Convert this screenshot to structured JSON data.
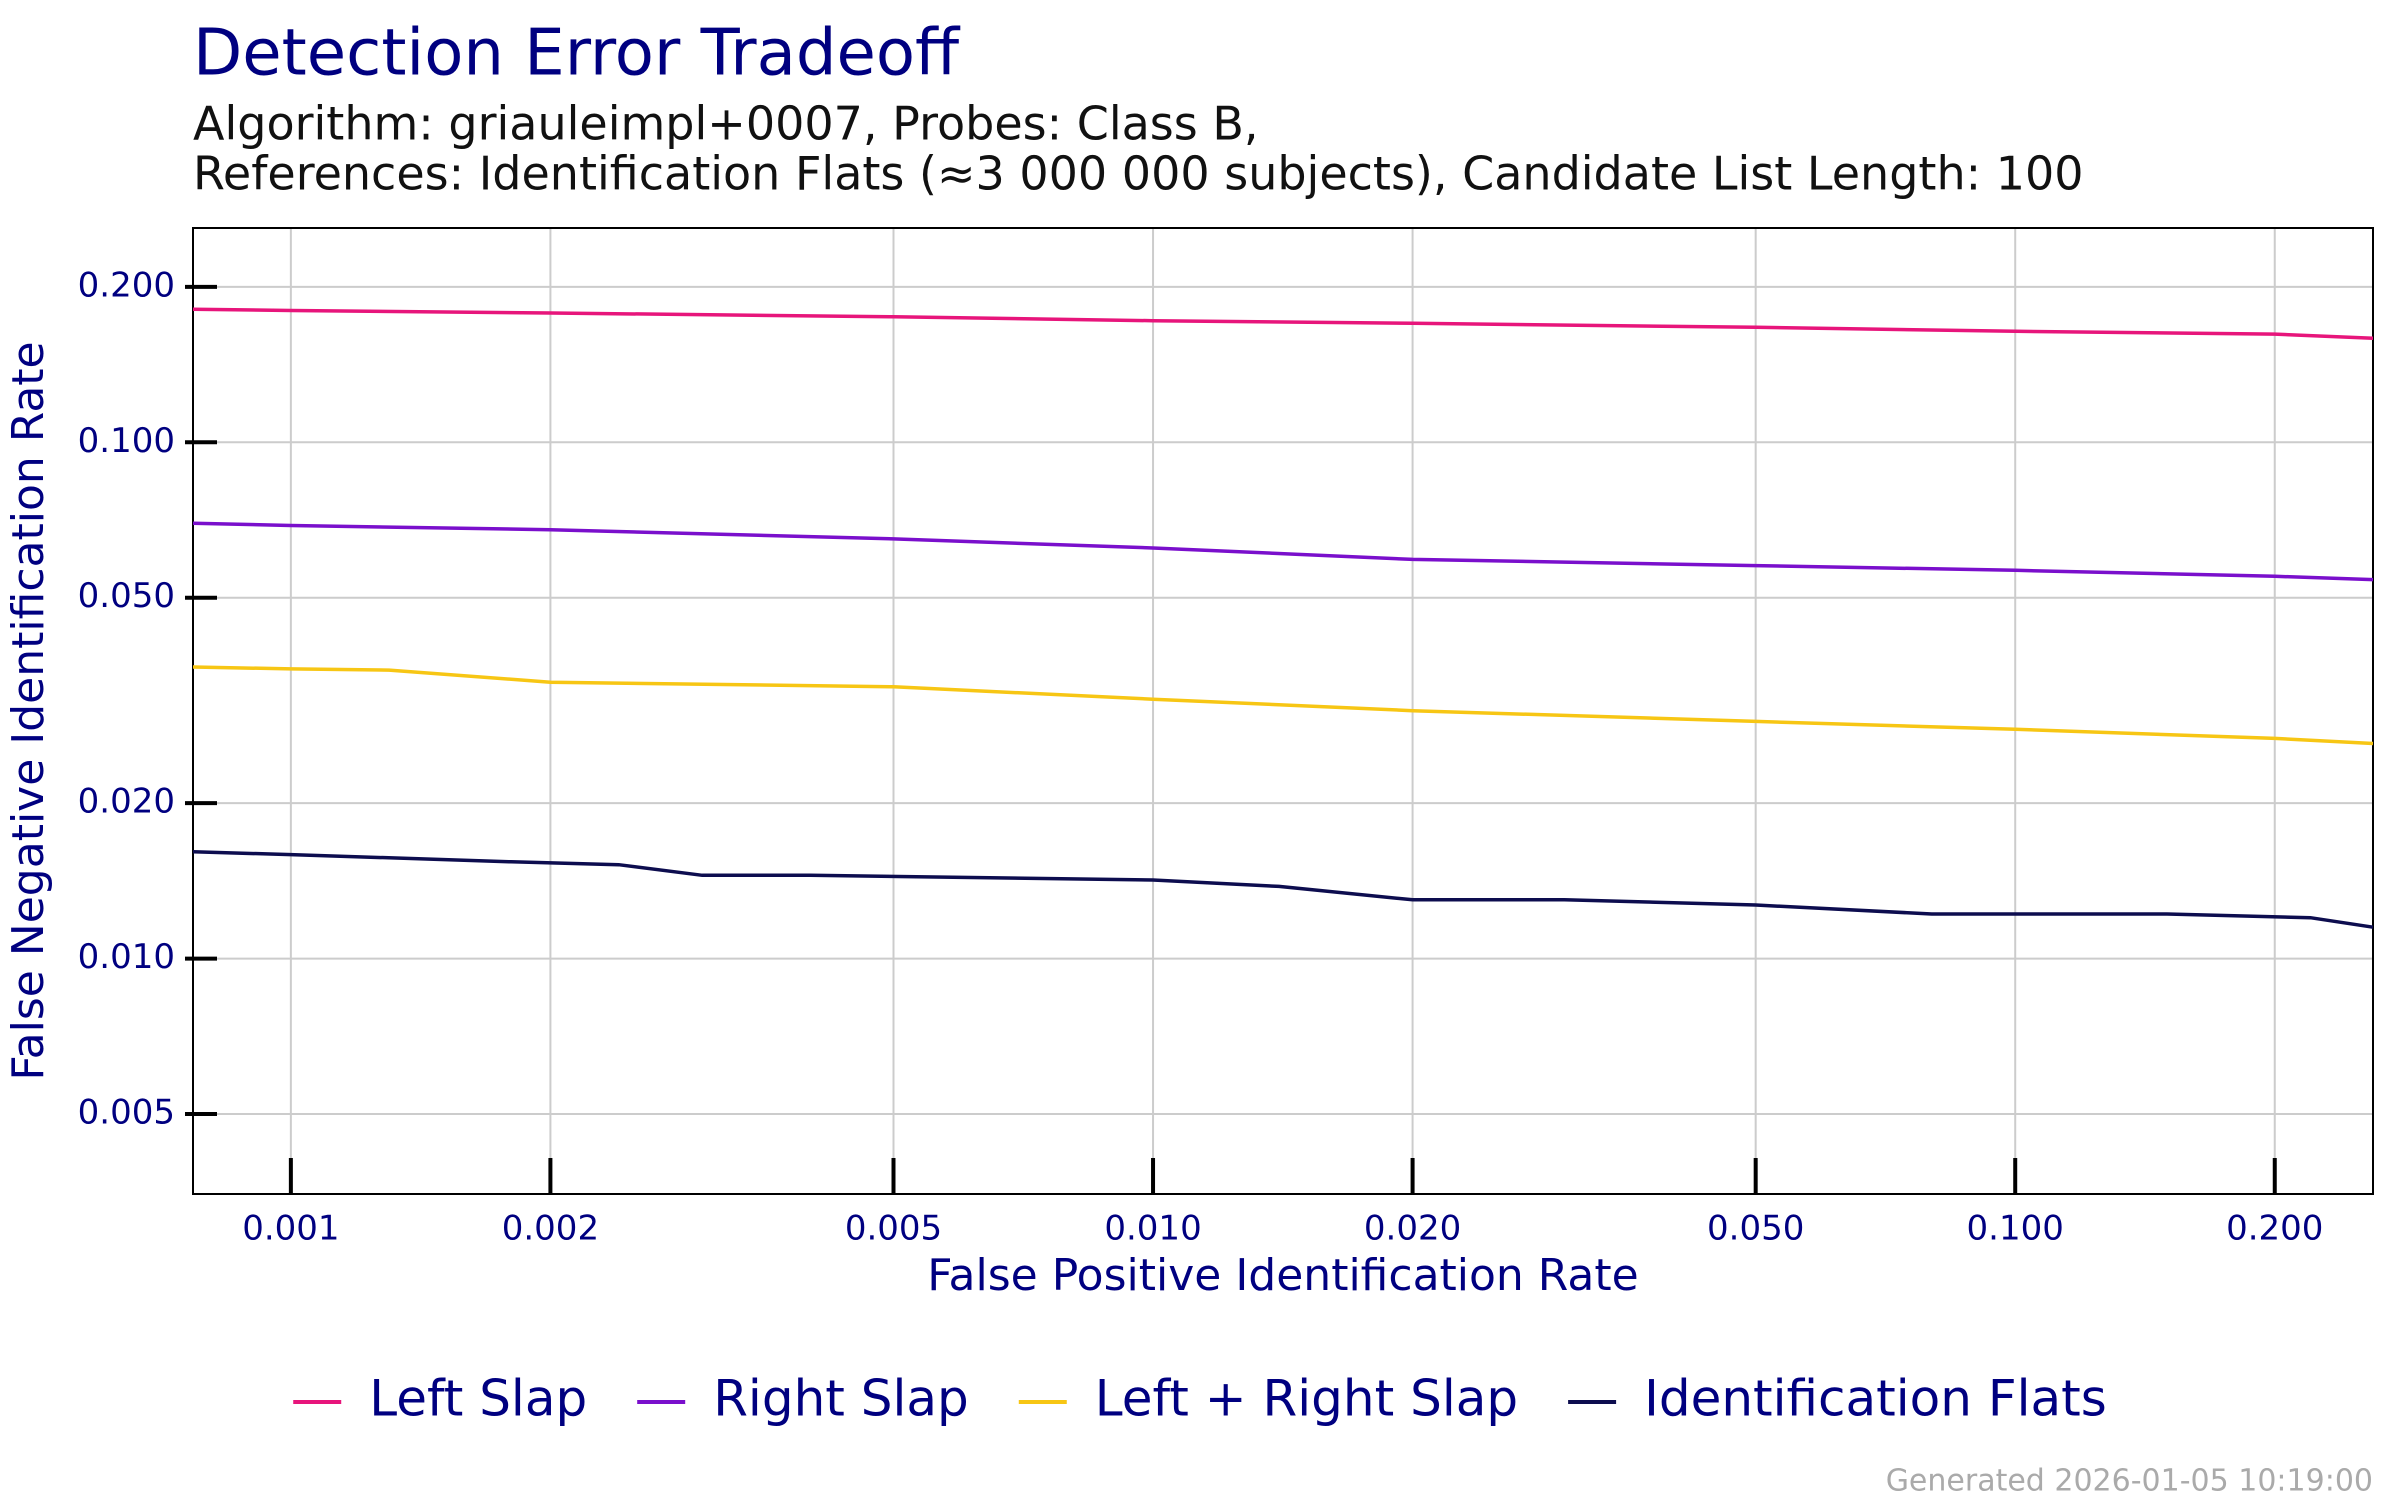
{
  "chart_data": {
    "type": "line",
    "title": "Detection Error Tradeoff",
    "subtitle": [
      "Algorithm: griauleimpl+0007, Probes: Class B,",
      "References: Identification Flats (≈3 000 000 subjects), Candidate List Length: 100"
    ],
    "x_label": "False Positive Identification Rate",
    "y_label": "False Negative Identification Rate",
    "log_x": true,
    "log_y": true,
    "grid": true,
    "legend": "bottom",
    "xlim": [
      0.00077,
      0.26
    ],
    "ylim": [
      0.0035,
      0.26
    ],
    "xticks": [
      {
        "value": 0.001,
        "label": "0.001"
      },
      {
        "value": 0.002,
        "label": "0.002"
      },
      {
        "value": 0.005,
        "label": "0.005"
      },
      {
        "value": 0.01,
        "label": "0.010"
      },
      {
        "value": 0.02,
        "label": "0.020"
      },
      {
        "value": 0.05,
        "label": "0.050"
      },
      {
        "value": 0.1,
        "label": "0.100"
      },
      {
        "value": 0.2,
        "label": "0.200"
      }
    ],
    "yticks": [
      {
        "value": 0.005,
        "label": "0.005"
      },
      {
        "value": 0.01,
        "label": "0.010"
      },
      {
        "value": 0.02,
        "label": "0.020"
      },
      {
        "value": 0.05,
        "label": "0.050"
      },
      {
        "value": 0.1,
        "label": "0.100"
      },
      {
        "value": 0.2,
        "label": "0.200"
      }
    ],
    "series": [
      {
        "name": "Left Slap",
        "color": "#e7157b",
        "x": [
          0.00077,
          0.001,
          0.002,
          0.005,
          0.01,
          0.02,
          0.05,
          0.1,
          0.2,
          0.26
        ],
        "values": [
          0.181,
          0.18,
          0.178,
          0.175,
          0.172,
          0.17,
          0.167,
          0.164,
          0.162,
          0.159
        ]
      },
      {
        "name": "Right Slap",
        "color": "#7a0fcc",
        "x": [
          0.00077,
          0.001,
          0.002,
          0.005,
          0.01,
          0.02,
          0.05,
          0.1,
          0.2,
          0.26
        ],
        "values": [
          0.0697,
          0.069,
          0.0677,
          0.065,
          0.0624,
          0.0593,
          0.0577,
          0.0565,
          0.055,
          0.0542
        ]
      },
      {
        "name": "Left + Right Slap",
        "color": "#f7c614",
        "x": [
          0.00077,
          0.001,
          0.0013,
          0.002,
          0.005,
          0.01,
          0.02,
          0.05,
          0.1,
          0.2,
          0.26
        ],
        "values": [
          0.0367,
          0.0364,
          0.0362,
          0.0343,
          0.0336,
          0.0318,
          0.0302,
          0.0288,
          0.0278,
          0.0267,
          0.0261
        ]
      },
      {
        "name": "Identification Flats",
        "color": "#0d0d4f",
        "x": [
          0.00077,
          0.001,
          0.0018,
          0.0024,
          0.003,
          0.004,
          0.01,
          0.014,
          0.02,
          0.03,
          0.05,
          0.08,
          0.15,
          0.22,
          0.26
        ],
        "values": [
          0.0161,
          0.0159,
          0.0154,
          0.0152,
          0.0145,
          0.0145,
          0.0142,
          0.0138,
          0.013,
          0.013,
          0.0127,
          0.0122,
          0.0122,
          0.012,
          0.0115
        ]
      }
    ],
    "footer": "Generated 2026-01-05 10:19:00"
  }
}
